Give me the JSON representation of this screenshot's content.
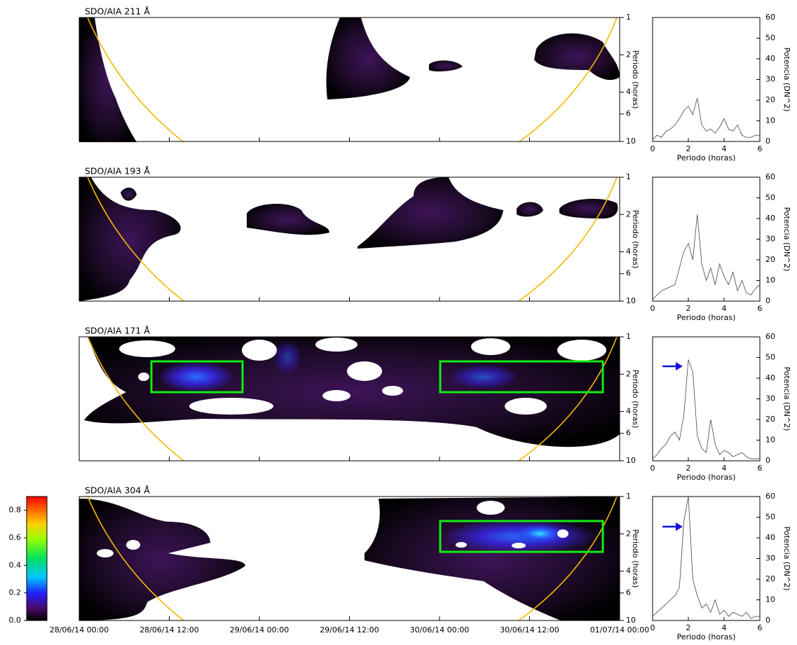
{
  "chart_data": {
    "type": "wavelet",
    "xlim": [
      0,
      72
    ],
    "xticks": [
      {
        "value": 0,
        "label": "28/06/14 00:00"
      },
      {
        "value": 12,
        "label": "28/06/14 12:00"
      },
      {
        "value": 24,
        "label": "29/06/14 00:00"
      },
      {
        "value": 36,
        "label": "29/06/14 12:00"
      },
      {
        "value": 48,
        "label": "30/06/14 00:00"
      },
      {
        "value": 60,
        "label": "30/06/14 12:00"
      },
      {
        "value": 72,
        "label": "01/07/14 00:00"
      }
    ],
    "colorbar": {
      "ylim": [
        0,
        0.9
      ],
      "yticks": [
        {
          "value": 0,
          "label": "0.0"
        },
        0.2,
        0.4,
        0.6,
        0.8
      ]
    },
    "panels": [
      {
        "title": "SDO/AIA 211 Å",
        "ylabel": "Periodo (horas)",
        "ylim": [
          1,
          10
        ],
        "yticks": [
          1,
          2,
          4,
          6,
          10
        ],
        "log_y": true,
        "spectrum": {
          "type": "line",
          "xlabel": "Periodo (horas)",
          "ylabel": "Potencia (DN^2)",
          "xlim": [
            0,
            6
          ],
          "xticks": [
            0,
            2,
            4,
            6
          ],
          "ylim": [
            0,
            60
          ],
          "yticks": [
            0,
            10,
            20,
            30,
            40,
            50,
            60
          ],
          "color": "#444444",
          "x": [
            0,
            0.25,
            0.5,
            0.75,
            1,
            1.25,
            1.5,
            1.75,
            2,
            2.25,
            2.5,
            2.75,
            3,
            3.25,
            3.5,
            3.75,
            4,
            4.25,
            4.5,
            4.75,
            5,
            5.25,
            5.5,
            5.75,
            6
          ],
          "values": [
            1,
            3,
            2,
            5,
            6,
            8,
            11,
            15,
            17,
            13,
            21,
            8,
            5,
            6,
            4,
            7,
            11,
            6,
            5,
            8,
            3,
            2,
            2,
            3,
            3
          ]
        }
      },
      {
        "title": "SDO/AIA 193 Å",
        "ylabel": "Periodo (horas)",
        "ylim": [
          1,
          10
        ],
        "yticks": [
          1,
          2,
          4,
          6,
          10
        ],
        "log_y": true,
        "spectrum": {
          "type": "line",
          "xlabel": "Periodo (horas)",
          "ylabel": "Potencia (DN^2)",
          "xlim": [
            0,
            6
          ],
          "xticks": [
            0,
            2,
            4,
            6
          ],
          "ylim": [
            0,
            60
          ],
          "yticks": [
            0,
            10,
            20,
            30,
            40,
            50,
            60
          ],
          "color": "#444444",
          "x": [
            0,
            0.25,
            0.5,
            0.75,
            1,
            1.25,
            1.5,
            1.75,
            2,
            2.25,
            2.5,
            2.75,
            3,
            3.25,
            3.5,
            3.75,
            4,
            4.25,
            4.5,
            4.75,
            5,
            5.25,
            5.5,
            5.75,
            6
          ],
          "values": [
            1,
            3,
            5,
            6,
            7,
            8,
            16,
            24,
            28,
            20,
            42,
            18,
            10,
            16,
            8,
            18,
            12,
            8,
            14,
            5,
            10,
            4,
            3,
            6,
            8
          ]
        }
      },
      {
        "title": "SDO/AIA 171 Å",
        "ylabel": "Periodo (horas)",
        "ylim": [
          1,
          10
        ],
        "yticks": [
          1,
          2,
          4,
          6,
          10
        ],
        "log_y": true,
        "spectrum": {
          "type": "line",
          "xlabel": "Periodo (horas)",
          "ylabel": "Potencia (DN^2)",
          "xlim": [
            0,
            6
          ],
          "xticks": [
            0,
            2,
            4,
            6
          ],
          "ylim": [
            0,
            60
          ],
          "yticks": [
            0,
            10,
            20,
            30,
            40,
            50,
            60
          ],
          "color": "#444444",
          "x": [
            0,
            0.25,
            0.5,
            0.75,
            1,
            1.25,
            1.5,
            1.75,
            2,
            2.25,
            2.5,
            2.75,
            3,
            3.25,
            3.5,
            3.75,
            4,
            4.25,
            4.5,
            4.75,
            5,
            5.25,
            5.5,
            5.75,
            6
          ],
          "values": [
            1,
            3,
            6,
            8,
            12,
            14,
            10,
            22,
            49,
            43,
            12,
            6,
            4,
            20,
            8,
            3,
            5,
            4,
            2,
            3,
            4,
            2,
            1,
            1,
            1
          ]
        }
      },
      {
        "title": "SDO/AIA 304 Å",
        "ylabel": "Periodo (horas)",
        "ylim": [
          1,
          10
        ],
        "yticks": [
          1,
          2,
          4,
          6,
          10
        ],
        "log_y": true,
        "spectrum": {
          "type": "line",
          "xlabel": "Periodo (horas)",
          "ylabel": "Potencia (DN^2)",
          "xlim": [
            0,
            6
          ],
          "xticks": [
            0,
            2,
            4,
            6
          ],
          "ylim": [
            0,
            60
          ],
          "yticks": [
            0,
            10,
            20,
            30,
            40,
            50,
            60
          ],
          "color": "#444444",
          "x": [
            0,
            0.25,
            0.5,
            0.75,
            1,
            1.25,
            1.5,
            1.75,
            2,
            2.25,
            2.5,
            2.75,
            3,
            3.25,
            3.5,
            3.75,
            4,
            4.25,
            4.5,
            4.75,
            5,
            5.25,
            5.5,
            5.75,
            6
          ],
          "values": [
            2,
            4,
            6,
            8,
            10,
            12,
            16,
            48,
            60,
            20,
            12,
            6,
            8,
            4,
            10,
            3,
            5,
            2,
            4,
            3,
            2,
            4,
            1,
            2,
            2
          ]
        }
      }
    ]
  }
}
